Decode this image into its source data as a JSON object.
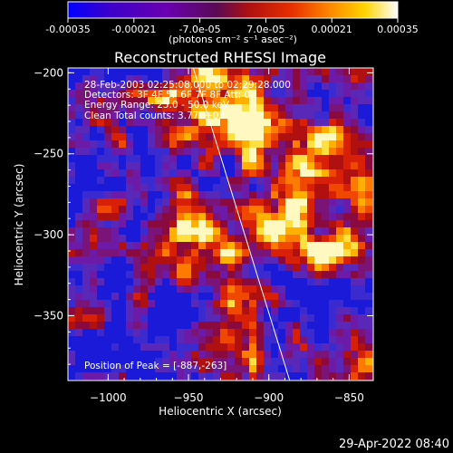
{
  "colorbar": {
    "tick_labels": [
      "-0.00035",
      "-0.00021",
      "-7.0e-05",
      "7.0e-05",
      "0.00021",
      "0.00035"
    ],
    "tick_values": [
      -0.00035,
      -0.00021,
      -7e-05,
      7e-05,
      0.00021,
      0.00035
    ],
    "range": [
      -0.00035,
      0.00035
    ],
    "units_label": "(photons cm⁻² s⁻¹ asec⁻²)",
    "colors": [
      "#0000ff",
      "#4b00aa",
      "#7a00b0",
      "#b01010",
      "#e03000",
      "#ff8c00",
      "#ffd400",
      "#ffffff"
    ]
  },
  "chart_data": {
    "type": "heatmap",
    "title": "Reconstructed RHESSI Image",
    "xlabel": "Heliocentric X (arcsec)",
    "ylabel": "Heliocentric Y (arcsec)",
    "xlim": [
      -1025,
      -835
    ],
    "ylim": [
      -390,
      -197
    ],
    "x_ticks": [
      -1000,
      -950,
      -900,
      -850
    ],
    "x_tick_labels": [
      "−1000",
      "−950",
      "−900",
      "−850"
    ],
    "y_ticks": [
      -200,
      -250,
      -300,
      -350
    ],
    "y_tick_labels": [
      "−200",
      "−250",
      "−300",
      "−350"
    ],
    "annotations": [
      "28-Feb-2003 02:25:08.000 to 02:29:28.000",
      "Detectors: 3F 4F 5F 6F 7F 8F Att: 0",
      "Energy Range: 25.0 - 50.0 keV",
      "Clean    Total counts: 3.77E+03"
    ],
    "peak_label": "Position of Peak = [-887,-263]",
    "peak": [
      -887,
      -263
    ],
    "limb_line": [
      [
        -947,
        -197
      ],
      [
        -887,
        -390
      ]
    ],
    "grid": false
  },
  "footer": {
    "timestamp": "29-Apr-2022 08:40"
  }
}
